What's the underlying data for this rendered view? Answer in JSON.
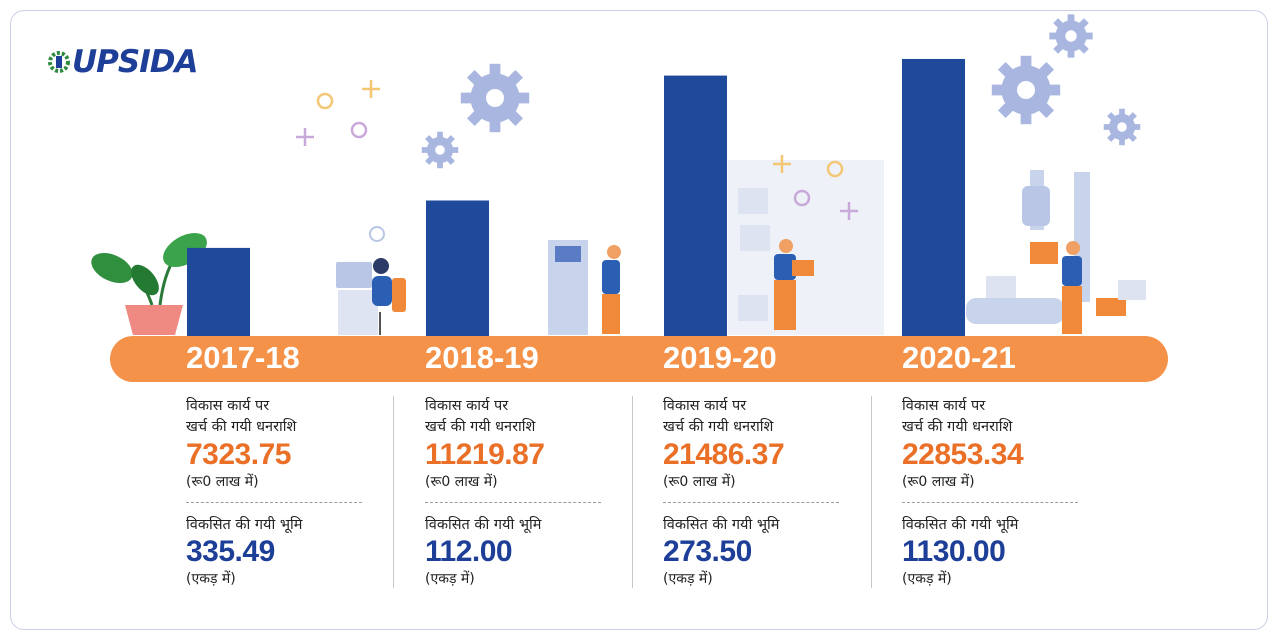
{
  "logo": {
    "text": "UPSIDA"
  },
  "colors": {
    "bar": "#1f4a9b",
    "band": "#f5924a",
    "amount": "#ea6f27",
    "land": "#1d3f97",
    "gear": "#a9b7e0"
  },
  "chart_data": {
    "type": "bar",
    "categories": [
      "2017-18",
      "2018-19",
      "2019-20",
      "2020-21"
    ],
    "series": [
      {
        "values": [
          7323.75,
          11219.87,
          21486.37,
          22853.34
        ]
      }
    ],
    "land_values": [
      335.49,
      112.0,
      273.5,
      1130.0
    ],
    "ylim": [
      0,
      24000
    ],
    "grid": false,
    "legend": "none"
  },
  "columns": [
    {
      "year": "2017-18",
      "desc": "विकास कार्य पर\nखर्च की गयी धनराशि",
      "amount": "7323.75",
      "amount_unit": "(रू0 लाख में)",
      "land_label": "विकसित की गयी भूमि",
      "land": "335.49",
      "land_unit": "(एकड़ में)"
    },
    {
      "year": "2018-19",
      "desc": "विकास कार्य पर\nखर्च की गयी धनराशि",
      "amount": "11219.87",
      "amount_unit": "(रू0 लाख में)",
      "land_label": "विकसित की गयी भूमि",
      "land": "112.00",
      "land_unit": "(एकड़ में)"
    },
    {
      "year": "2019-20",
      "desc": "विकास कार्य पर\nखर्च की गयी धनराशि",
      "amount": "21486.37",
      "amount_unit": "(रू0 लाख में)",
      "land_label": "विकसित की गयी भूमि",
      "land": "273.50",
      "land_unit": "(एकड़ में)"
    },
    {
      "year": "2020-21",
      "desc": "विकास कार्य पर\nखर्च की गयी धनराशि",
      "amount": "22853.34",
      "amount_unit": "(रू0 लाख में)",
      "land_label": "विकसित की गयी भूमि",
      "land": "1130.00",
      "land_unit": "(एकड़ में)"
    }
  ]
}
